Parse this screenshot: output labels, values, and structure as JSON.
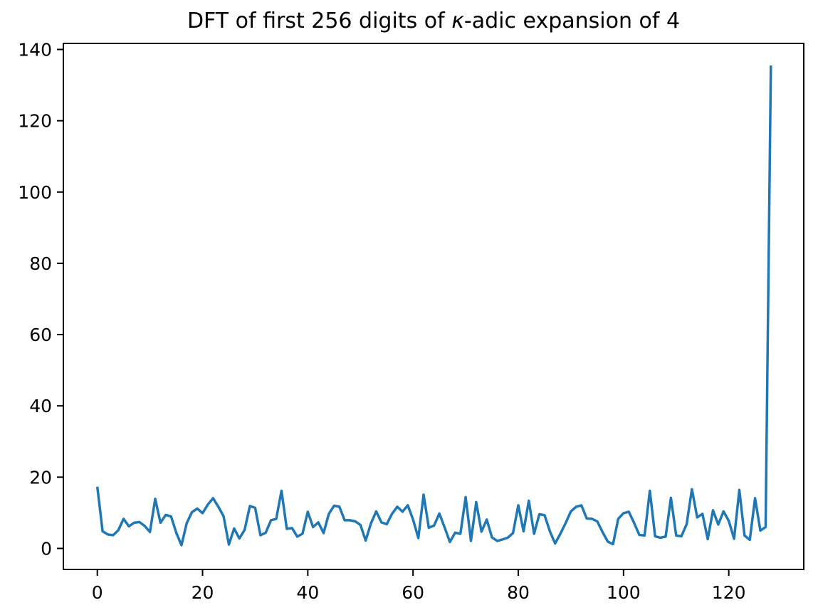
{
  "figure": {
    "title_prefix": "DFT of first 256 digits of ",
    "title_kappa": "κ",
    "title_suffix": "-adic expansion of 4"
  },
  "chart_data": {
    "type": "line",
    "title": "DFT of first 256 digits of κ-adic expansion of 4",
    "xlabel": "",
    "ylabel": "",
    "legend": null,
    "grid": false,
    "series_color": "#1f77b4",
    "axis_color": "#000000",
    "x_start": 0,
    "x_step": 1,
    "x_range_shown": [
      0,
      128
    ],
    "xlim": [
      -6.45,
      134.25
    ],
    "ylim": [
      -5.9,
      141.7
    ],
    "xticks": [
      0,
      20,
      40,
      60,
      80,
      100,
      120
    ],
    "yticks": [
      0,
      20,
      40,
      60,
      80,
      100,
      120,
      140
    ],
    "values": [
      17.3,
      4.8,
      3.9,
      3.7,
      5.1,
      8.3,
      6.2,
      7.2,
      7.4,
      6.3,
      4.6,
      13.9,
      7.2,
      9.4,
      9.0,
      4.4,
      0.9,
      7.1,
      10.2,
      11.2,
      9.9,
      12.3,
      14.1,
      11.7,
      9.0,
      1.1,
      5.6,
      2.8,
      5.2,
      11.9,
      11.4,
      3.7,
      4.4,
      7.9,
      8.3,
      16.2,
      5.5,
      5.7,
      3.3,
      4.1,
      10.3,
      6.0,
      7.3,
      4.3,
      9.7,
      12.0,
      11.7,
      7.9,
      7.9,
      7.6,
      6.6,
      2.2,
      7.0,
      10.4,
      7.3,
      6.8,
      9.7,
      11.7,
      10.3,
      12.1,
      8.1,
      2.9,
      15.1,
      5.8,
      6.4,
      9.8,
      5.9,
      1.8,
      4.4,
      4.1,
      14.4,
      2.1,
      13.0,
      4.7,
      8.1,
      3.1,
      2.1,
      2.5,
      3.0,
      4.3,
      12.1,
      4.8,
      13.4,
      4.1,
      9.6,
      9.3,
      4.8,
      1.4,
      4.1,
      7.1,
      10.4,
      11.7,
      12.1,
      8.4,
      8.3,
      7.6,
      4.6,
      1.9,
      1.2,
      8.3,
      9.9,
      10.3,
      7.2,
      3.8,
      3.6,
      16.2,
      3.4,
      3.0,
      3.3,
      14.2,
      3.6,
      3.4,
      6.8,
      16.6,
      8.7,
      9.7,
      2.6,
      10.7,
      6.7,
      10.4,
      7.7,
      2.7,
      16.4,
      3.6,
      2.4,
      14.1,
      5.0,
      6.0,
      135.5
    ]
  }
}
